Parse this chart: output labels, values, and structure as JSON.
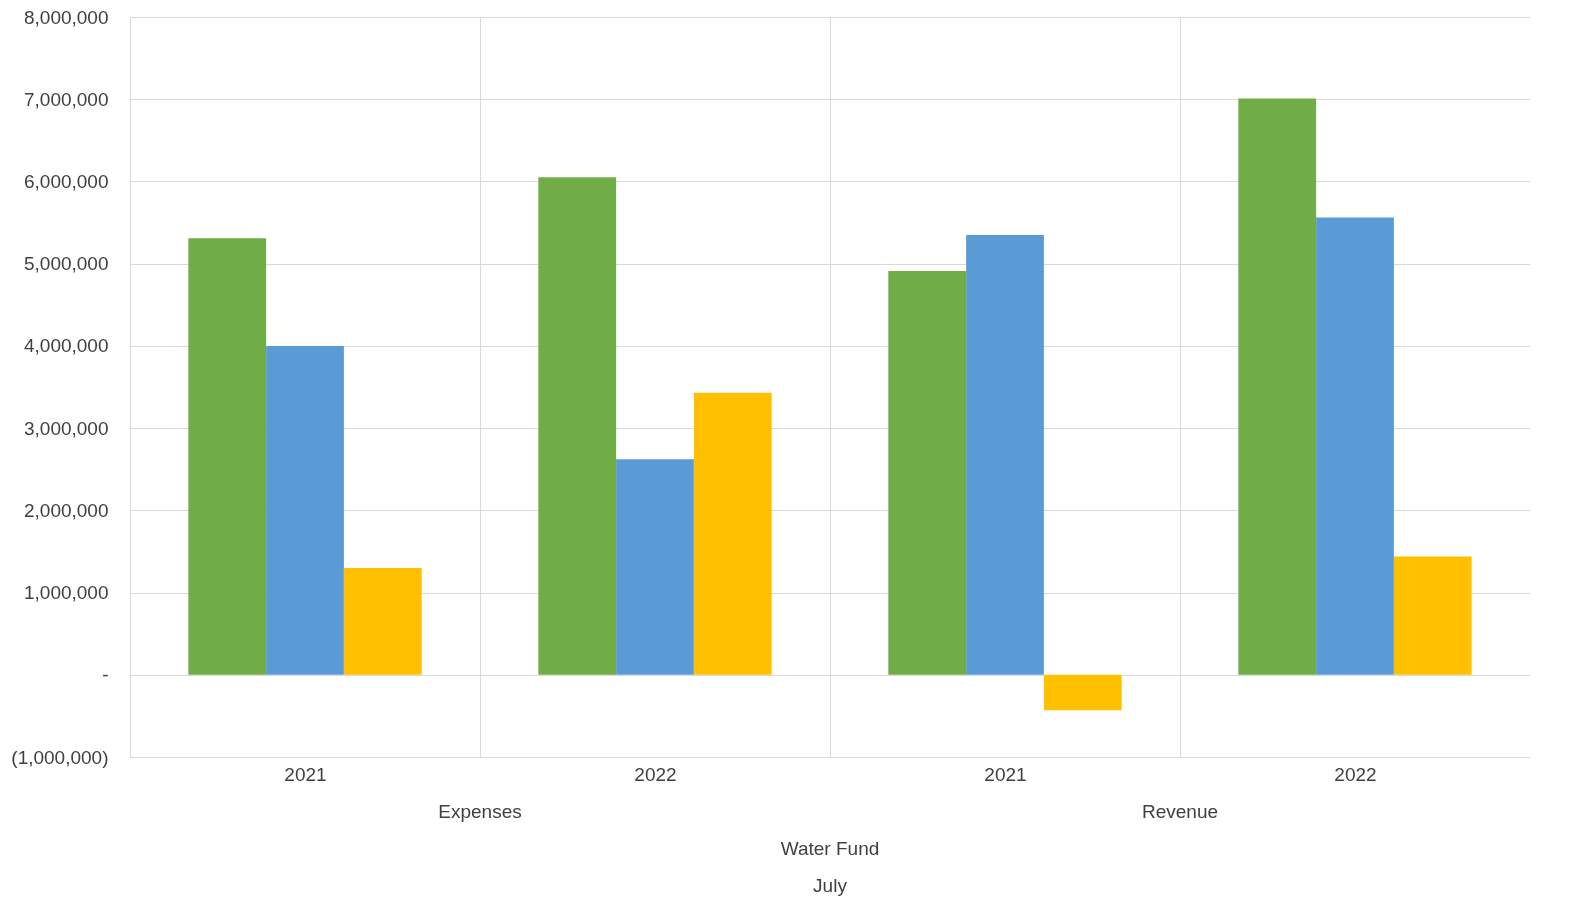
{
  "chart_data": {
    "type": "bar",
    "categories": [
      "2021",
      "2022",
      "2021",
      "2022"
    ],
    "series": [
      {
        "color": "#70ad47",
        "values": [
          5310000,
          6050000,
          4910000,
          7010000
        ]
      },
      {
        "color": "#5b9bd5",
        "values": [
          4000000,
          2620000,
          5350000,
          5560000
        ]
      },
      {
        "color": "#ffc000",
        "values": [
          1300000,
          3430000,
          -430000,
          1440000
        ]
      }
    ],
    "ylim": [
      -1000000,
      8000000
    ],
    "yticks": [
      {
        "value": -1000000,
        "label": "(1,000,000)"
      },
      {
        "value": 0,
        "label": "-"
      },
      {
        "value": 1000000,
        "label": "1,000,000"
      },
      {
        "value": 2000000,
        "label": "2,000,000"
      },
      {
        "value": 3000000,
        "label": "3,000,000"
      },
      {
        "value": 4000000,
        "label": "4,000,000"
      },
      {
        "value": 5000000,
        "label": "5,000,000"
      },
      {
        "value": 6000000,
        "label": "6,000,000"
      },
      {
        "value": 7000000,
        "label": "7,000,000"
      },
      {
        "value": 8000000,
        "label": "8,000,000"
      }
    ],
    "annotations": [
      "Expenses",
      "Revenue",
      "Water Fund",
      "July"
    ],
    "grid": true,
    "legend": false
  }
}
